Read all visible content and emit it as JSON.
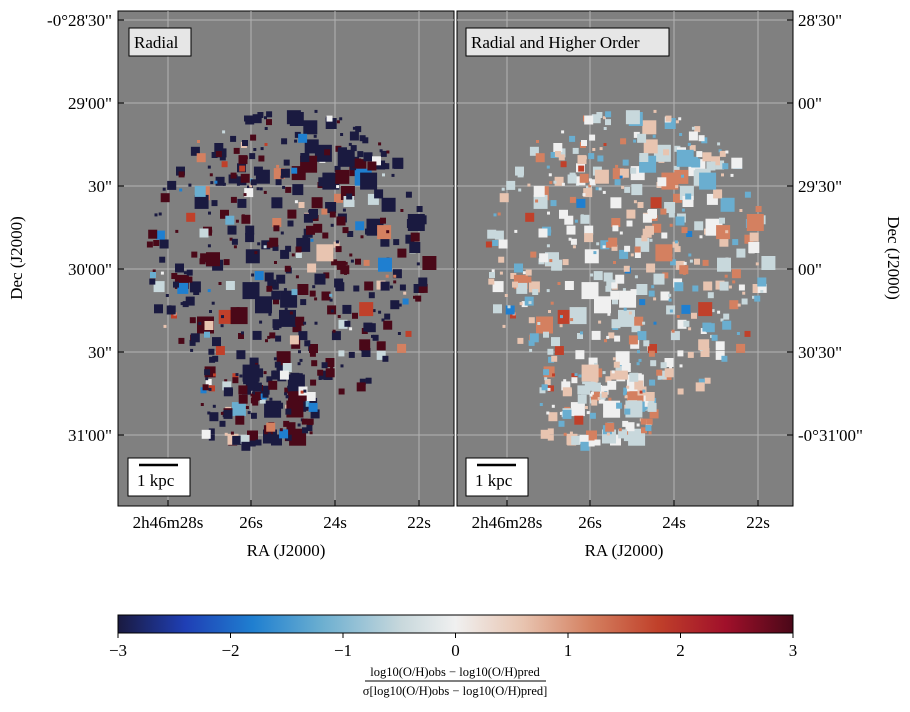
{
  "chart_data": {
    "type": "heatmap",
    "panels": [
      {
        "id": "left",
        "label": "Radial",
        "scalebar": "1 kpc",
        "xlabel": "RA (J2000)",
        "ylabel": "Dec (J2000)",
        "x_ticks": [
          "2h46m28s",
          "26s",
          "24s",
          "22s"
        ],
        "y_ticks": [
          "-0°28'30\"",
          "29'00\"",
          "30\"",
          "30'00\"",
          "30\"",
          "31'00\""
        ]
      },
      {
        "id": "right",
        "label": "Radial and Higher Order",
        "scalebar": "1 kpc",
        "xlabel": "RA (J2000)",
        "ylabel": "Dec (J2000)",
        "x_ticks": [
          "2h46m28s",
          "26s",
          "24s",
          "22s"
        ],
        "y_ticks": [
          "28'30\"",
          "00\"",
          "29'30\"",
          "00\"",
          "30'30\"",
          "-0°31'00\""
        ]
      }
    ],
    "colorbar": {
      "range": [
        -3,
        3
      ],
      "ticks": [
        "−3",
        "−2",
        "−1",
        "0",
        "1",
        "2",
        "3"
      ],
      "label_numerator": "log10(O/H)obs − log10(O/H)pred",
      "label_denominator": "σ[log10(O/H)obs − log10(O/H)pred]"
    }
  },
  "colors": {
    "background": "#808080",
    "cmap": [
      "#1a1a40",
      "#1f3fb5",
      "#1f7fd0",
      "#6aaed0",
      "#c8d8dc",
      "#f0f0f0",
      "#e8c4b0",
      "#d48060",
      "#c0402a",
      "#a0102a",
      "#4a0818"
    ]
  }
}
